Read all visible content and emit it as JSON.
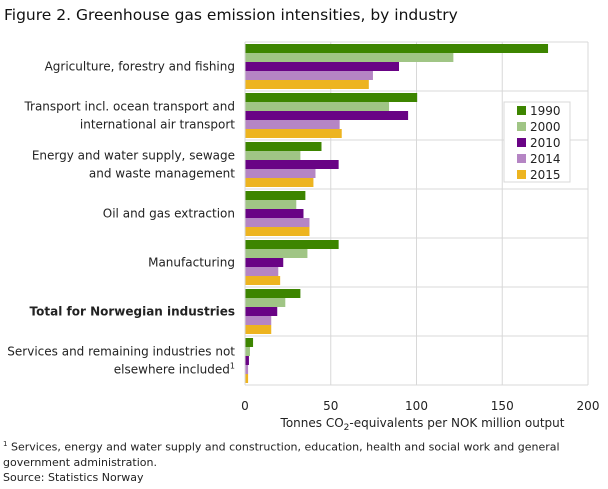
{
  "title": "Figure 2. Greenhouse gas emission intensities, by industry",
  "chart_data": {
    "type": "bar",
    "orientation": "horizontal",
    "title": "Figure 2. Greenhouse gas emission intensities, by industry",
    "xlabel": "Tonnes CO2-equivalents  per NOK million output",
    "xlim": [
      0,
      200
    ],
    "xticks": [
      0,
      50,
      100,
      150,
      200
    ],
    "grid": true,
    "legend_position": "right",
    "categories": [
      {
        "lines": [
          "Agriculture, forestry and fishing"
        ],
        "bold": false
      },
      {
        "lines": [
          "Transport incl. ocean transport and",
          "international air transport"
        ],
        "bold": false
      },
      {
        "lines": [
          "Energy and water supply, sewage",
          "and waste management"
        ],
        "bold": false
      },
      {
        "lines": [
          "Oil and gas extraction"
        ],
        "bold": false
      },
      {
        "lines": [
          "Manufacturing"
        ],
        "bold": false
      },
      {
        "lines": [
          "Total for Norwegian industries"
        ],
        "bold": true
      },
      {
        "lines": [
          "Services and remaining  industries not",
          "elsewhere  included"
        ],
        "bold": false,
        "footnote": "1"
      }
    ],
    "series": [
      {
        "name": "1990",
        "color": "#3d8500",
        "values": [
          176.7,
          100.4,
          44.6,
          35.2,
          54.6,
          32.3,
          4.7
        ]
      },
      {
        "name": "2000",
        "color": "#a0c585",
        "values": [
          121.5,
          84.0,
          32.3,
          29.9,
          36.4,
          23.5,
          2.9
        ]
      },
      {
        "name": "2010",
        "color": "#690385",
        "values": [
          89.8,
          95.1,
          54.6,
          34.1,
          22.3,
          18.8,
          2.3
        ]
      },
      {
        "name": "2014",
        "color": "#b585c4",
        "values": [
          74.6,
          55.2,
          41.1,
          37.6,
          19.4,
          15.3,
          1.8
        ]
      },
      {
        "name": "2015",
        "color": "#edb420",
        "values": [
          72.2,
          56.4,
          39.9,
          37.6,
          20.5,
          15.3,
          1.8
        ]
      }
    ]
  },
  "footnote": "Services, energy and water supply and construction, education, health and social work and general government administration.",
  "footnote_marker": "1",
  "source": "Source: Statistics Norway"
}
